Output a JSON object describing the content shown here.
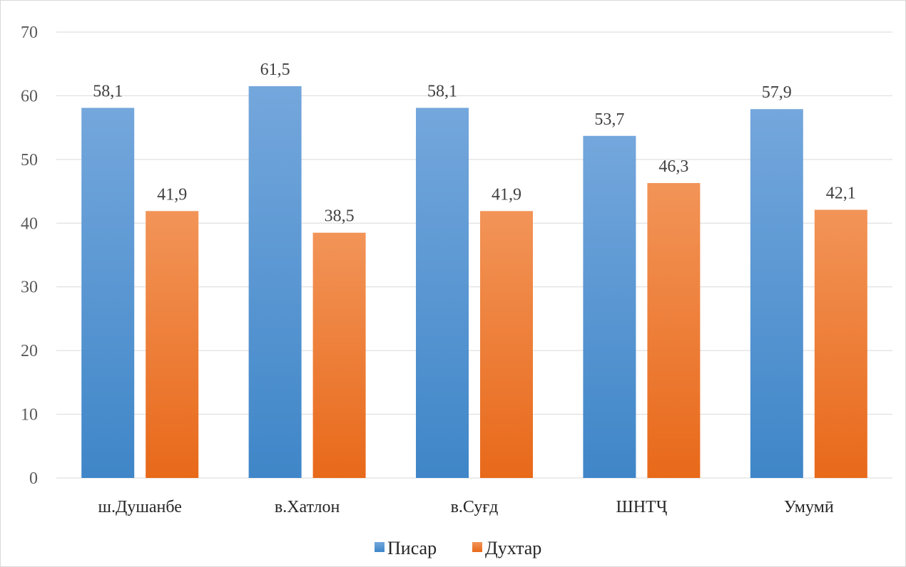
{
  "chart_data": {
    "type": "bar",
    "title": "",
    "xlabel": "",
    "ylabel": "",
    "categories": [
      "ш.Душанбе",
      "в.Хатлон",
      "в.Суғд",
      "ШНТҶ",
      "Умумӣ"
    ],
    "series": [
      {
        "name": "Писар",
        "values": [
          58.1,
          61.5,
          58.1,
          53.7,
          57.9
        ],
        "labels": [
          "58,1",
          "61,5",
          "58,1",
          "53,7",
          "57,9"
        ],
        "color_top": "#74a7dc",
        "color_bottom": "#3f86c8"
      },
      {
        "name": "Духтар",
        "values": [
          41.9,
          38.5,
          41.9,
          46.3,
          42.1
        ],
        "labels": [
          "41,9",
          "38,5",
          "41,9",
          "46,3",
          "42,1"
        ],
        "color_top": "#f29458",
        "color_bottom": "#e8691a"
      }
    ],
    "ylim": [
      0,
      70
    ],
    "yticks": [
      "0",
      "10",
      "20",
      "30",
      "40",
      "50",
      "60",
      "70"
    ],
    "grid": true,
    "legend": "bottom-center"
  }
}
